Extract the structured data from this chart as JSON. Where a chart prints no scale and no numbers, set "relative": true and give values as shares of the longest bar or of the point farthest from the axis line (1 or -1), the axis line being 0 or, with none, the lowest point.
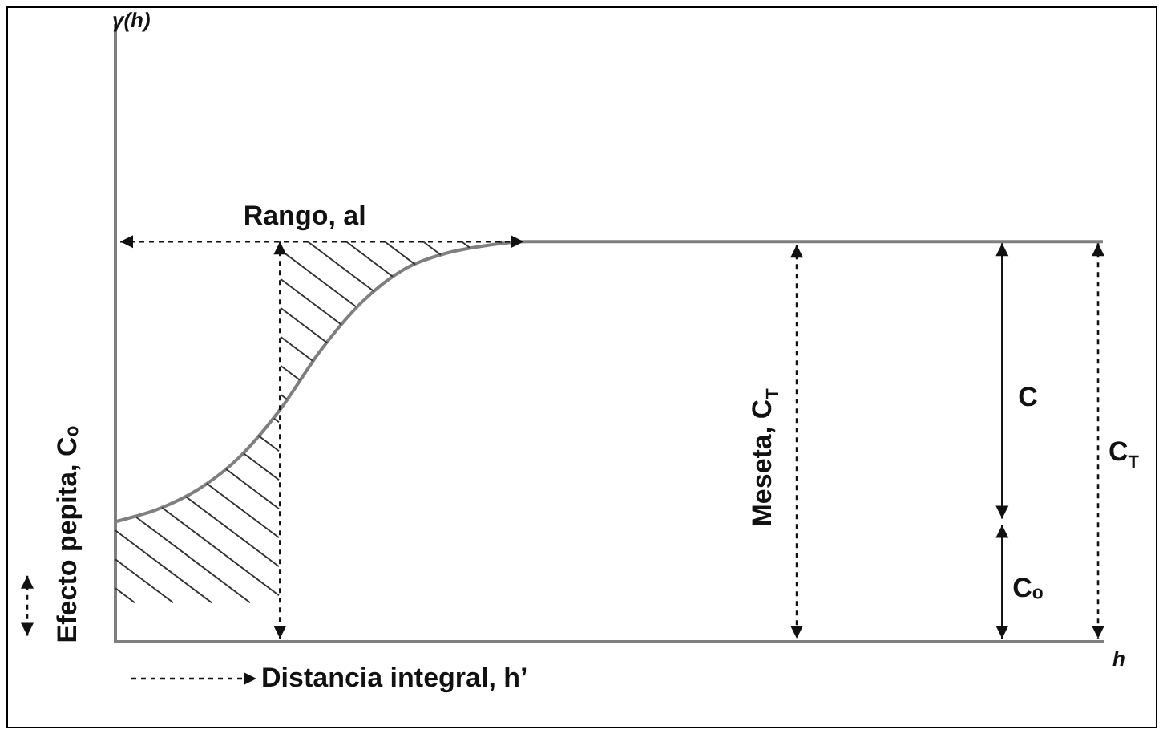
{
  "chart_data": {
    "type": "line",
    "relative": true,
    "color": "#7f7f7f",
    "marker": "none",
    "line_style": "solid",
    "xlabel": "h",
    "categories": [
      null,
      null,
      null,
      null,
      null,
      null,
      null,
      null,
      null,
      null,
      null,
      null,
      null,
      null,
      null,
      null,
      null,
      null,
      null,
      null,
      null,
      null,
      null,
      null,
      null
    ],
    "values": [
      0.3,
      0.33,
      0.38,
      0.46,
      0.58,
      0.73,
      0.85,
      0.93,
      0.97,
      0.99,
      1,
      1,
      1,
      1,
      1,
      1,
      1,
      1,
      1,
      1,
      1,
      1,
      1,
      1,
      1
    ],
    "annotations": [
      "Rango, al",
      "Efecto pepita, Cₒ",
      "Meseta, C$_{T}$",
      "C",
      "C$_{T}$",
      "Cₒ",
      "Distancia integral, h’",
      "γ(h)"
    ]
  }
}
